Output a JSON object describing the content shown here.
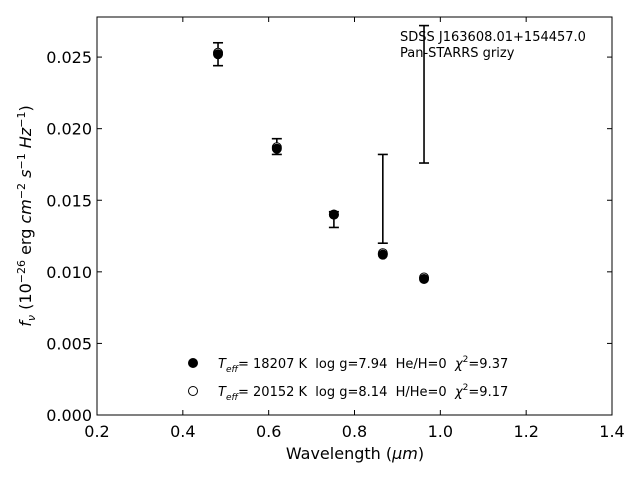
{
  "chart_data": {
    "type": "scatter",
    "xlabel_prefix": "Wavelength (",
    "xlabel_unit": "μm",
    "xlabel_suffix": ")",
    "ylabel": "f_ν (10^−26 erg cm^−2 s^−1 Hz^−1)",
    "xlim": [
      0.2,
      1.4
    ],
    "ylim": [
      0.0,
      0.0278
    ],
    "x_ticks": [
      0.2,
      0.4,
      0.6,
      0.8,
      1.0,
      1.2,
      1.4
    ],
    "x_tick_labels": [
      "0.2",
      "0.4",
      "0.6",
      "0.8",
      "1.0",
      "1.2",
      "1.4"
    ],
    "y_ticks": [
      0.0,
      0.005,
      0.01,
      0.015,
      0.02,
      0.025
    ],
    "y_tick_labels": [
      "0.000",
      "0.005",
      "0.010",
      "0.015",
      "0.020",
      "0.025"
    ],
    "grid": false,
    "tick_direction": "in",
    "annotation": {
      "line1": "SDSS J163608.01+154457.0",
      "line2": "Pan-STARRS grizy"
    },
    "observed": {
      "x": [
        0.482,
        0.619,
        0.752,
        0.866,
        0.962
      ],
      "y": [
        0.0252,
        0.0187,
        0.014,
        0.0151,
        0.0224
      ],
      "yerr_low": [
        0.0008,
        0.0005,
        0.0009,
        0.0031,
        0.0048
      ],
      "yerr_high": [
        0.0008,
        0.0006,
        0.0002,
        0.0031,
        0.0048
      ]
    },
    "series": [
      {
        "marker": "filled-circle",
        "x": [
          0.482,
          0.619,
          0.752,
          0.866,
          0.962
        ],
        "y": [
          0.0252,
          0.0186,
          0.014,
          0.0112,
          0.0095
        ]
      },
      {
        "marker": "open-circle",
        "x": [
          0.482,
          0.619,
          0.752,
          0.866,
          0.962
        ],
        "y": [
          0.0253,
          0.0187,
          0.014,
          0.0113,
          0.0096
        ]
      }
    ],
    "legend": {
      "placement": "lower-center",
      "entries": [
        {
          "marker": "filled-circle",
          "label_T": "T",
          "label_eff": "eff",
          "label_rest": "= 18207 K  log g=7.94  He/H=0  ",
          "label_chi": "χ",
          "label_sup": "2",
          "label_chival": "=9.37"
        },
        {
          "marker": "open-circle",
          "label_T": "T",
          "label_eff": "eff",
          "label_rest": "= 20152 K  log g=8.14  H/He=0  ",
          "label_chi": "χ",
          "label_sup": "2",
          "label_chival": "=9.17"
        }
      ]
    }
  }
}
